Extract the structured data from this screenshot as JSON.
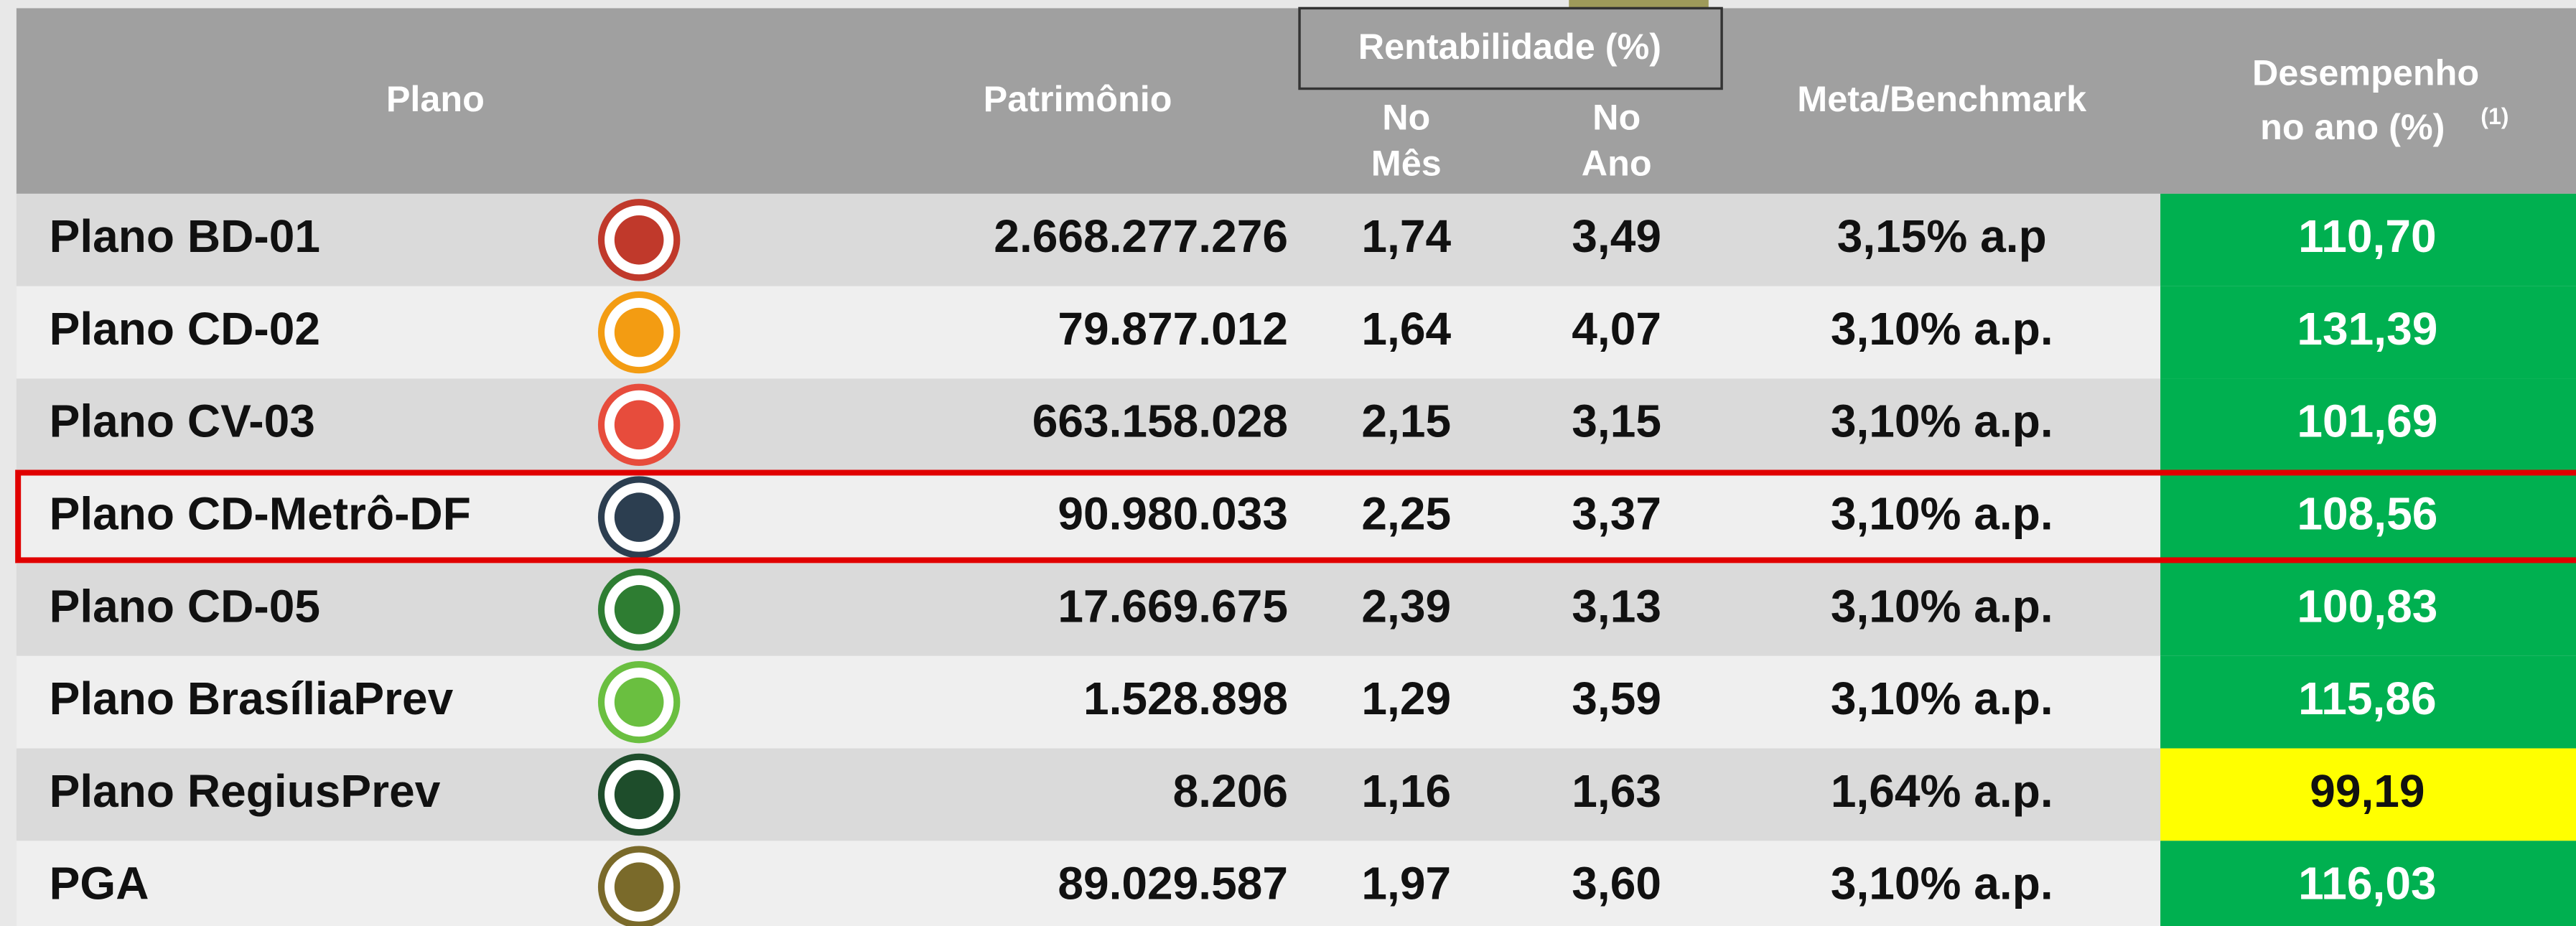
{
  "table": {
    "header": {
      "plano": "Plano",
      "patrimonio": "Patrimônio",
      "rentabilidade": "Rentabilidade (%)",
      "no_mes": [
        "No",
        "Mês"
      ],
      "no_ano": [
        "No",
        "Ano"
      ],
      "meta": "Meta/Benchmark",
      "desempenho": [
        "Desempenho",
        "no ano (%)"
      ],
      "footnote": "(1)"
    },
    "rows": [
      {
        "name": "Plano BD-01",
        "patrimonio": "2.668.277.276",
        "mes": "1,74",
        "ano": "3,49",
        "meta": "3,15% a.p",
        "desempenho": "110,70",
        "color": "#00b050"
      },
      {
        "name": "Plano CD-02",
        "patrimonio": "79.877.012",
        "mes": "1,64",
        "ano": "4,07",
        "meta": "3,10% a.p.",
        "desempenho": "131,39",
        "color": "#00b050"
      },
      {
        "name": "Plano CV-03",
        "patrimonio": "663.158.028",
        "mes": "2,15",
        "ano": "3,15",
        "meta": "3,10% a.p.",
        "desempenho": "101,69",
        "color": "#00b050"
      },
      {
        "name": "Plano CD-Metrô-DF",
        "patrimonio": "90.980.033",
        "mes": "2,25",
        "ano": "3,37",
        "meta": "3,10% a.p.",
        "desempenho": "108,56",
        "color": "#00b050"
      },
      {
        "name": "Plano CD-05",
        "patrimonio": "17.669.675",
        "mes": "2,39",
        "ano": "3,13",
        "meta": "3,10% a.p.",
        "desempenho": "100,83",
        "color": "#00b050"
      },
      {
        "name": "Plano BrasíliaPrev",
        "patrimonio": "1.528.898",
        "mes": "1,29",
        "ano": "3,59",
        "meta": "3,10% a.p.",
        "desempenho": "115,86",
        "color": "#00b050"
      },
      {
        "name": "Plano RegiusPrev",
        "patrimonio": "8.206",
        "mes": "1,16",
        "ano": "1,63",
        "meta": "1,64% a.p.",
        "desempenho": "99,19",
        "color": "#ffff00"
      },
      {
        "name": "PGA",
        "patrimonio": "89.029.587",
        "mes": "1,97",
        "ano": "3,60",
        "meta": "3,10% a.p.",
        "desempenho": "116,03",
        "color": "#00b050"
      }
    ],
    "highlighted_row": 3
  }
}
